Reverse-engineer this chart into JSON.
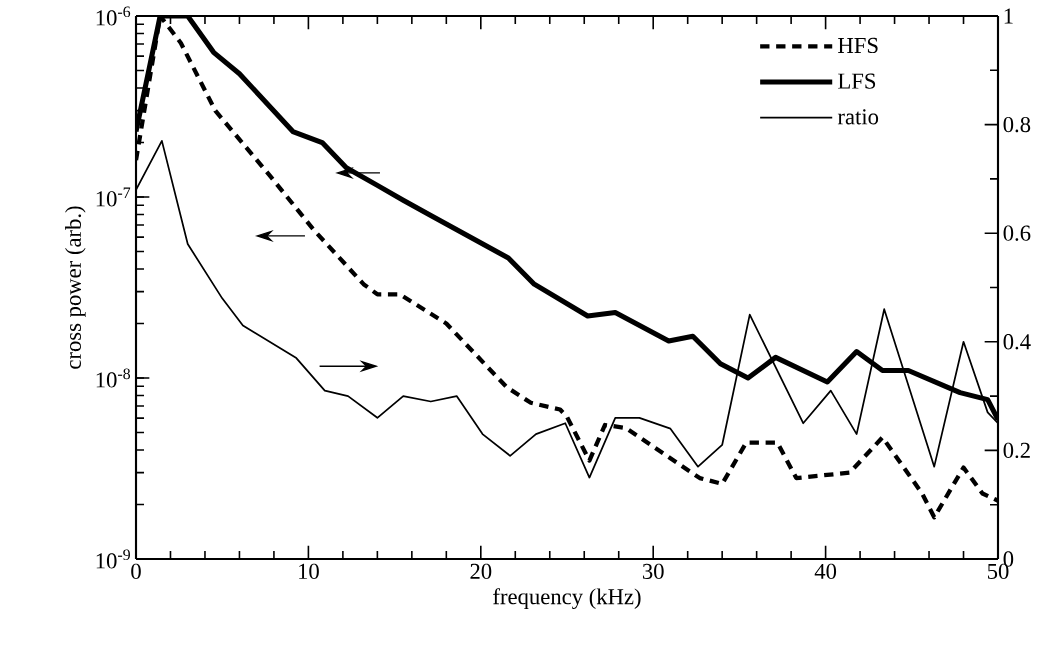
{
  "chart_data": {
    "type": "line",
    "xlabel": "frequency (kHz)",
    "ylabel": "cross power (arb.)",
    "log": "y",
    "legend": "top right",
    "xlim": [
      0,
      50
    ],
    "xticks": [
      0,
      10,
      20,
      30,
      40,
      50
    ],
    "ylim": [
      1e-09,
      1e-06
    ],
    "yticks": [
      {
        "value": 1e-09,
        "label": "10$^{-9}$"
      },
      {
        "value": 1e-08,
        "label": "10$^{-8}$"
      },
      {
        "value": 1e-07,
        "label": "10$^{-7}$"
      },
      {
        "value": 1e-06,
        "label": "10$^{-6}$"
      }
    ],
    "y2lim": [
      0,
      1
    ],
    "y2ticks": [
      0,
      0.2,
      0.4,
      0.6,
      0.8,
      1
    ],
    "series": [
      {
        "name": "HFS",
        "color": "#000000",
        "line_style": "dashed",
        "x": [
          0,
          1.4,
          2.6,
          4.6,
          7.8,
          10.3,
          13.2,
          14.0,
          15.3,
          18.0,
          21.5,
          22.9,
          24.6,
          25.0,
          26.3,
          27.2,
          28.4,
          32.7,
          34.0,
          35.4,
          37.2,
          38.3,
          41.4,
          43.3,
          45.6,
          46.3,
          48.0,
          49.1,
          50
        ],
        "values": [
          1.6e-07,
          1e-06,
          7.1e-07,
          3e-07,
          1.3e-07,
          6.6e-08,
          3.3e-08,
          2.9e-08,
          2.9e-08,
          2e-08,
          8.9e-09,
          7.3e-09,
          6.7e-09,
          6.1e-09,
          3.5e-09,
          5.5e-09,
          5.3e-09,
          2.8e-09,
          2.6e-09,
          4.4e-09,
          4.4e-09,
          2.8e-09,
          3e-09,
          4.7e-09,
          2.3e-09,
          1.7e-09,
          3.2e-09,
          2.3e-09,
          2.1e-09
        ]
      },
      {
        "name": "LFS",
        "color": "#000000",
        "line_style": "solid",
        "x": [
          0,
          1.4,
          3.0,
          4.5,
          6.0,
          9.1,
          10.8,
          12.2,
          14.0,
          15.5,
          17.1,
          21.6,
          23.1,
          26.2,
          27.8,
          30.9,
          32.3,
          33.9,
          35.5,
          37.1,
          40.1,
          41.8,
          43.3,
          44.8,
          47.8,
          49.4,
          50
        ],
        "values": [
          2.3e-07,
          1e-06,
          1e-06,
          6.3e-07,
          4.8e-07,
          2.3e-07,
          2e-07,
          1.45e-07,
          1.16e-07,
          9.6e-08,
          7.9e-08,
          4.6e-08,
          3.3e-08,
          2.2e-08,
          2.3e-08,
          1.6e-08,
          1.7e-08,
          1.2e-08,
          1e-08,
          1.3e-08,
          9.5e-09,
          1.4e-08,
          1.1e-08,
          1.1e-08,
          8.3e-09,
          7.6e-09,
          5.9e-09
        ]
      },
      {
        "name": "ratio",
        "color": "#000000",
        "line_style": "solid",
        "axis": "y2",
        "x": [
          0,
          1.5,
          3.0,
          5.0,
          6.2,
          9.3,
          10.95,
          12.3,
          14.0,
          15.5,
          17.1,
          18.6,
          20.1,
          21.7,
          23.2,
          24.9,
          26.3,
          27.8,
          29.2,
          31.0,
          32.6,
          34.0,
          35.6,
          38.7,
          40.3,
          41.8,
          43.4,
          46.3,
          48.0,
          49.4,
          50
        ],
        "values": [
          0.68,
          0.77,
          0.58,
          0.48,
          0.43,
          0.37,
          0.31,
          0.3,
          0.26,
          0.3,
          0.29,
          0.3,
          0.23,
          0.19,
          0.23,
          0.25,
          0.15,
          0.26,
          0.26,
          0.24,
          0.17,
          0.21,
          0.45,
          0.25,
          0.31,
          0.23,
          0.46,
          0.17,
          0.4,
          0.27,
          0.25
        ]
      }
    ]
  }
}
